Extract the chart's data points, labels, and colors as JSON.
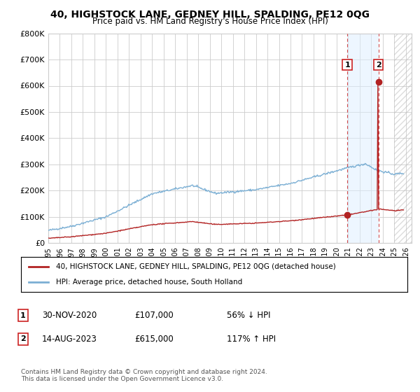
{
  "title": "40, HIGHSTOCK LANE, GEDNEY HILL, SPALDING, PE12 0QG",
  "subtitle": "Price paid vs. HM Land Registry's House Price Index (HPI)",
  "ylabel_ticks": [
    "£0",
    "£100K",
    "£200K",
    "£300K",
    "£400K",
    "£500K",
    "£600K",
    "£700K",
    "£800K"
  ],
  "ytick_values": [
    0,
    100000,
    200000,
    300000,
    400000,
    500000,
    600000,
    700000,
    800000
  ],
  "ylim": [
    0,
    800000
  ],
  "xlim_min": 1995,
  "xlim_max": 2026.5,
  "hpi_color": "#7bafd4",
  "price_color": "#b22222",
  "sale1_x": 2020.92,
  "sale1_y": 107000,
  "sale2_x": 2023.62,
  "sale2_y": 615000,
  "sale1_label": "1",
  "sale2_label": "2",
  "sale1_date": "30-NOV-2020",
  "sale1_price": "£107,000",
  "sale1_hpi": "56% ↓ HPI",
  "sale2_date": "14-AUG-2023",
  "sale2_price": "£615,000",
  "sale2_hpi": "117% ↑ HPI",
  "legend1_label": "40, HIGHSTOCK LANE, GEDNEY HILL, SPALDING, PE12 0QG (detached house)",
  "legend2_label": "HPI: Average price, detached house, South Holland",
  "footnote": "Contains HM Land Registry data © Crown copyright and database right 2024.\nThis data is licensed under the Open Government Licence v3.0.",
  "grid_color": "#cccccc",
  "bg_color": "#ffffff",
  "vline_color": "#cc2222",
  "shade_color": "#ddeeff",
  "hatch_color": "#bbbbbb"
}
